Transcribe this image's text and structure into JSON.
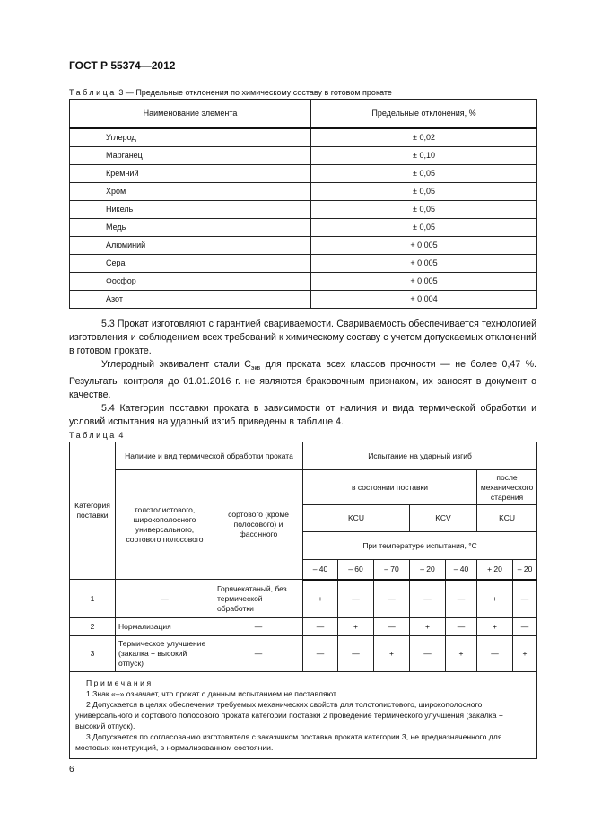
{
  "header": {
    "doc_id": "ГОСТ Р 55374—2012"
  },
  "table3": {
    "caption_word": "Таблица",
    "caption_rest": "3 — Предельные отклонения по химическому составу в готовом прокате",
    "columns": [
      "Наименование элемента",
      "Предельные отклонения, %"
    ],
    "rows": [
      [
        "Углерод",
        "± 0,02"
      ],
      [
        "Марганец",
        "± 0,10"
      ],
      [
        "Кремний",
        "± 0,05"
      ],
      [
        "Хром",
        "± 0,05"
      ],
      [
        "Никель",
        "± 0,05"
      ],
      [
        "Медь",
        "± 0,05"
      ],
      [
        "Алюминий",
        "+ 0,005"
      ],
      [
        "Сера",
        "+ 0,005"
      ],
      [
        "Фосфор",
        "+ 0,005"
      ],
      [
        "Азот",
        "+ 0,004"
      ]
    ]
  },
  "body": {
    "p1": "5.3 Прокат изготовляют с гарантией свариваемости. Свариваемость обеспечивается технологией изготовления и соблюдением всех требований к химическому составу с учетом допускаемых отклонений в готовом прокате.",
    "p2_a": "Углеродный эквивалент стали С",
    "p2_sub": "экв",
    "p2_b": " для проката всех классов прочности — не более 0,47 %. Результаты контроля до 01.01.2016 г. не являются браковочным признаком, их заносят в документ о качестве.",
    "p3": "5.4 Категории поставки проката в зависимости от наличия и вида термической обработки и условий испытания на ударный изгиб приведены в таблице 4."
  },
  "table4": {
    "caption_word": "Таблица",
    "caption_rest": "4",
    "h_category": "Категория поставки",
    "h_treatment": "Наличие и вид термической обработки проката",
    "h_col_a": "толстолистового, широкополосного универсального, сортового полосового",
    "h_col_b": "сортового (кроме полосового) и фасонного",
    "h_impact": "Испытание на ударный изгиб",
    "h_delivery": "в состоянии поставки",
    "h_aging": "после механического старения",
    "h_kcu1": "KCU",
    "h_kcv": "KCV",
    "h_kcu2": "KCU",
    "h_temp": "При температуре испытания, °С",
    "temps": [
      "– 40",
      "– 60",
      "– 70",
      "– 20",
      "– 40",
      "+ 20",
      "– 20"
    ],
    "rows": [
      {
        "cat": "1",
        "a": "—",
        "b": "Горячекатаный, без термической обработки",
        "v": [
          "+",
          "—",
          "—",
          "—",
          "—",
          "+",
          "—"
        ]
      },
      {
        "cat": "2",
        "a": "Нормализация",
        "b": "—",
        "v": [
          "—",
          "+",
          "—",
          "+",
          "—",
          "+",
          "—"
        ]
      },
      {
        "cat": "3",
        "a": "Термическое улучшение (закалка + высокий отпуск)",
        "b": "—",
        "v": [
          "—",
          "—",
          "+",
          "—",
          "+",
          "—",
          "+"
        ]
      }
    ],
    "notes_title": "Примечания",
    "notes": [
      "1 Знак «–» означает, что прокат с данным испытанием не поставляют.",
      "2 Допускается в целях обеспечения требуемых механических свойств для толстолистового, широкополосного универсального и сортового полосового проката категории поставки 2 проведение термического улучшения (закалка + высокий отпуск).",
      "3 Допускается по согласованию изготовителя с заказчиком поставка проката категории 3, не предназначенного для мостовых конструкций, в нормализованном состоянии."
    ]
  },
  "page_number": "6"
}
